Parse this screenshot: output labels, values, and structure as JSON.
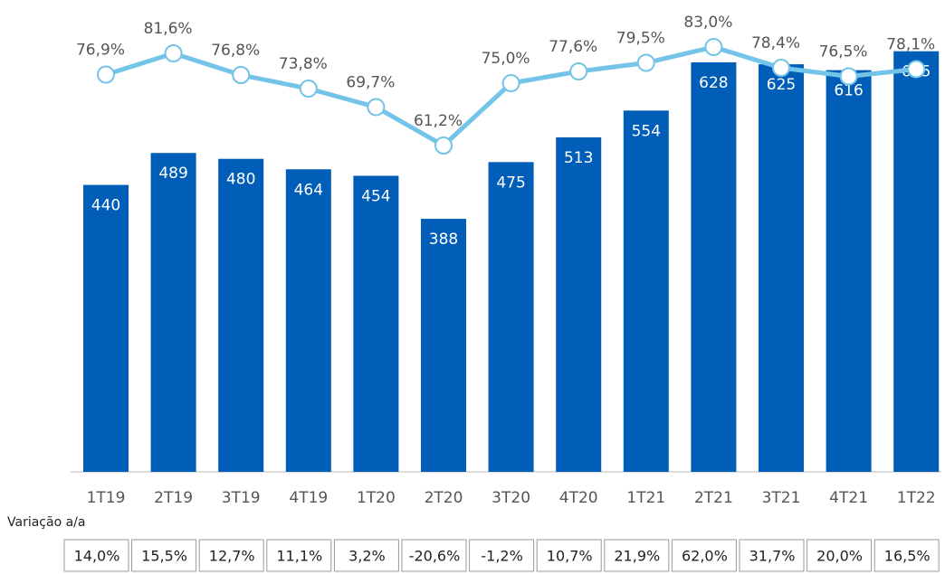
{
  "chart_data": {
    "type": "bar",
    "categories": [
      "1T19",
      "2T19",
      "3T19",
      "4T19",
      "1T20",
      "2T20",
      "3T20",
      "4T20",
      "1T21",
      "2T21",
      "3T21",
      "4T21",
      "1T22"
    ],
    "ylim": [
      0,
      700
    ],
    "y2lim": [
      60,
      85
    ],
    "series": [
      {
        "type": "bar",
        "color": "#005eb8",
        "values": [
          440,
          489,
          480,
          464,
          454,
          388,
          475,
          513,
          554,
          628,
          625,
          616,
          645
        ]
      },
      {
        "type": "line",
        "axis": "y2",
        "color": "#74c3e8",
        "values": [
          76.9,
          81.6,
          76.8,
          73.8,
          69.7,
          61.2,
          75.0,
          77.6,
          79.5,
          83.0,
          78.4,
          76.5,
          78.1
        ],
        "value_labels": [
          "76,9%",
          "81,6%",
          "76,8%",
          "73,8%",
          "69,7%",
          "61,2%",
          "75,0%",
          "77,6%",
          "79,5%",
          "83,0%",
          "78,4%",
          "76,5%",
          "78,1%"
        ]
      }
    ]
  },
  "table": {
    "title": "Variação a/a",
    "cells": [
      "14,0%",
      "15,5%",
      "12,7%",
      "11,1%",
      "3,2%",
      "-20,6%",
      "-1,2%",
      "10,7%",
      "21,9%",
      "62,0%",
      "31,7%",
      "20,0%",
      "16,5%"
    ]
  }
}
